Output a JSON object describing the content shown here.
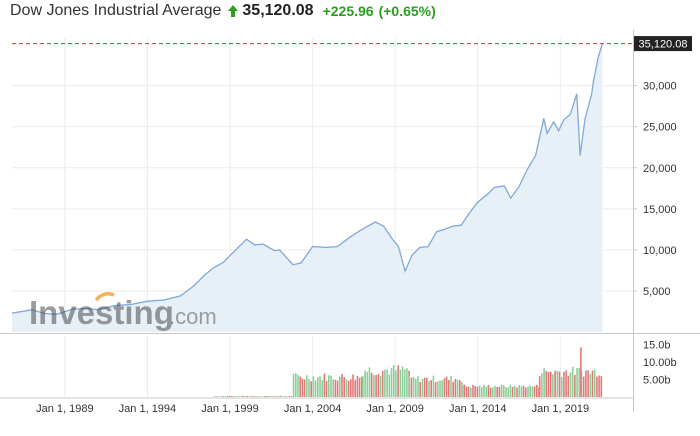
{
  "header": {
    "title": "Dow Jones Industrial Average",
    "price": "35,120.08",
    "change": "+225.96",
    "change_pct": "(+0.65%)",
    "direction": "up"
  },
  "watermark": {
    "brand": "Investing",
    "suffix": ".com"
  },
  "colors": {
    "line": "#7fa9d6",
    "area": "#e7eff7",
    "up_volume": "#8ccf98",
    "down_volume": "#e07a78",
    "last_price_line": "#c0392b",
    "positive_text": "#2a9e1f"
  },
  "chart_data": {
    "type": "area",
    "title": "Dow Jones Industrial Average",
    "last_price_label": "35,120.08",
    "last_price": 35120.08,
    "y_ticks": [
      "5,000",
      "10,000",
      "15,000",
      "20,000",
      "25,000",
      "30,000"
    ],
    "y_tick_values": [
      5000,
      10000,
      15000,
      20000,
      25000,
      30000
    ],
    "ylim": [
      0,
      35800
    ],
    "x_ticks": [
      "Jan 1, 1989",
      "Jan 1, 1994",
      "Jan 1, 1999",
      "Jan 1, 2004",
      "Jan 1, 2009",
      "Jan 1, 2014",
      "Jan 1, 2019"
    ],
    "x_tick_values": [
      1989,
      1994,
      1999,
      2004,
      2009,
      2014,
      2019
    ],
    "xlim": [
      1985.8,
      2023.4
    ],
    "grid": true,
    "series": [
      {
        "x": [
          1985.8,
          1987.0,
          1987.8,
          1988.5,
          1989.5,
          1990.5,
          1991.0,
          1992.0,
          1993.0,
          1994.0,
          1995.0,
          1996.0,
          1996.8,
          1997.5,
          1998.0,
          1998.6,
          1999.0,
          1999.6,
          2000.0,
          2000.5,
          2001.0,
          2001.7,
          2002.0,
          2002.8,
          2003.3,
          2004.0,
          2004.8,
          2005.5,
          2006.3,
          2007.0,
          2007.8,
          2008.3,
          2008.8,
          2009.2,
          2009.6,
          2010.0,
          2010.5,
          2011.0,
          2011.5,
          2012.0,
          2012.5,
          2013.0,
          2013.5,
          2014.0,
          2014.6,
          2015.0,
          2015.6,
          2016.0,
          2016.5,
          2017.0,
          2017.5,
          2018.0,
          2018.2,
          2018.6,
          2018.9,
          2019.2,
          2019.6,
          2020.0,
          2020.2,
          2020.5,
          2020.9,
          2021.0,
          2021.3,
          2021.55
        ],
        "values": [
          2300,
          2700,
          2250,
          2150,
          2800,
          2850,
          2700,
          3200,
          3350,
          3750,
          3900,
          4400,
          5600,
          7000,
          7800,
          8500,
          9300,
          10500,
          11300,
          10600,
          10700,
          9900,
          10000,
          8200,
          8400,
          10400,
          10300,
          10400,
          11600,
          12500,
          13400,
          12900,
          11400,
          10400,
          7400,
          9300,
          10300,
          10400,
          12200,
          12500,
          12900,
          13000,
          14500,
          15800,
          16800,
          17600,
          17800,
          16300,
          17700,
          19800,
          21500,
          26000,
          24200,
          25600,
          24500,
          25800,
          26500,
          29000,
          21500,
          26000,
          29000,
          30500,
          33500,
          35120
        ]
      }
    ],
    "volume": {
      "y_ticks": [
        "5.00b",
        "10.00b",
        "15.0b"
      ],
      "y_tick_values": [
        5,
        10,
        15
      ],
      "ylim": [
        0,
        17.5
      ],
      "unit": "b",
      "segments": [
        {
          "start": 1985.8,
          "end": 1998.0,
          "base": 0.0,
          "amp": 0.0
        },
        {
          "start": 1998.0,
          "end": 2002.8,
          "base": 0.15,
          "amp": 0.2
        },
        {
          "start": 2002.8,
          "end": 2007.0,
          "base": 4.5,
          "amp": 2.5
        },
        {
          "start": 2007.0,
          "end": 2009.8,
          "base": 6.0,
          "amp": 3.5
        },
        {
          "start": 2009.8,
          "end": 2013.0,
          "base": 4.2,
          "amp": 2.0
        },
        {
          "start": 2013.0,
          "end": 2017.7,
          "base": 2.6,
          "amp": 1.0
        },
        {
          "start": 2017.7,
          "end": 2021.55,
          "base": 5.8,
          "amp": 3.0
        }
      ],
      "peak": {
        "x": 2020.2,
        "value": 14.2
      }
    }
  }
}
